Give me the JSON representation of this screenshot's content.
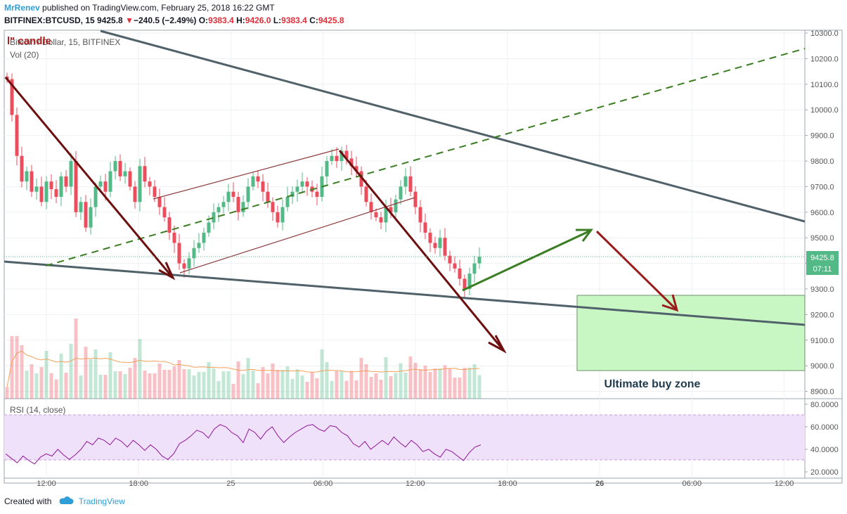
{
  "header": {
    "author": "MrRenev",
    "published_text": "published on TradingView.com, February 25, 2018 16:22 GMT",
    "symbol": "BITFINEX:BTCUSD, 15",
    "last": "9425.8",
    "change_arrow": "▼",
    "change": "−240.5 (−2.49%)",
    "o_label": "O:",
    "o": "9383.4",
    "h_label": "H:",
    "h": "9426.0",
    "l_label": "L:",
    "l": "9383.4",
    "c_label": "C:",
    "c": "9425.8"
  },
  "overlay_title": "l\" candle",
  "legend": {
    "series": "Bitcoin / Dollar, 15, BITFINEX",
    "volume": "Vol (20)",
    "rsi": "RSI (14, close)"
  },
  "price_badge": {
    "price": "9425.8",
    "countdown": "07:11"
  },
  "annotation": "Ultimate buy zone",
  "footer": {
    "created_with": "Created with",
    "brand": "TradingView"
  },
  "colors": {
    "up": "#53b987",
    "down": "#eb4d5c",
    "trend_line": "#506169",
    "arrow_dark": "#6e0f0f",
    "arrow_green": "#3a7d22",
    "channel": "#8d3b3b",
    "buy_zone": "#c9f7c4",
    "rsi_band": "#f0e1fb",
    "rsi_line": "#8e1599"
  },
  "chart_data": [
    {
      "type": "candlestick",
      "x_ticks": [
        "12:00",
        "18:00",
        "25",
        "06:00",
        "12:00",
        "18:00",
        "26",
        "06:00",
        "12:00"
      ],
      "y_ticks": [
        "10300.0",
        "10200.0",
        "10100.0",
        "10000.0",
        "9900.0",
        "9800.0",
        "9700.0",
        "9600.0",
        "9500.0",
        "9400.0",
        "9300.0",
        "9200.0",
        "9100.0",
        "9000.0",
        "8900.0"
      ],
      "ylim": [
        8880,
        10310
      ],
      "closes": [
        10120,
        9980,
        9820,
        9720,
        9760,
        9680,
        9700,
        9640,
        9720,
        9690,
        9660,
        9740,
        9700,
        9800,
        9600,
        9640,
        9540,
        9620,
        9700,
        9720,
        9680,
        9760,
        9800,
        9740,
        9760,
        9700,
        9640,
        9780,
        9720,
        9700,
        9660,
        9620,
        9580,
        9520,
        9480,
        9400,
        9380,
        9420,
        9460,
        9480,
        9520,
        9560,
        9600,
        9620,
        9640,
        9680,
        9660,
        9600,
        9640,
        9700,
        9740,
        9720,
        9680,
        9640,
        9600,
        9560,
        9620,
        9660,
        9680,
        9700,
        9720,
        9700,
        9680,
        9660,
        9740,
        9800,
        9820,
        9800,
        9840,
        9810,
        9780,
        9760,
        9700,
        9640,
        9600,
        9580,
        9560,
        9620,
        9600,
        9650,
        9700,
        9740,
        9680,
        9620,
        9560,
        9520,
        9480,
        9460,
        9500,
        9430,
        9400,
        9380,
        9340,
        9300,
        9360,
        9400,
        9425.8
      ],
      "volume_label": "Vol (20)"
    },
    {
      "type": "line",
      "name": "RSI (14, close)",
      "y_ticks": [
        "80.0000",
        "60.0000",
        "40.0000",
        "20.0000"
      ],
      "ylim": [
        16,
        82
      ],
      "band": [
        30,
        70
      ],
      "values": [
        36,
        32,
        28,
        34,
        30,
        27,
        33,
        36,
        34,
        40,
        35,
        31,
        35,
        40,
        47,
        44,
        50,
        48,
        44,
        50,
        47,
        42,
        48,
        44,
        39,
        44,
        40,
        34,
        31,
        36,
        45,
        48,
        52,
        57,
        55,
        50,
        58,
        62,
        60,
        55,
        52,
        46,
        58,
        55,
        49,
        56,
        60,
        52,
        46,
        51,
        55,
        58,
        61,
        62,
        58,
        56,
        61,
        60,
        55,
        52,
        45,
        42,
        47,
        40,
        44,
        48,
        44,
        51,
        46,
        42,
        48,
        44,
        38,
        40,
        36,
        33,
        40,
        38,
        34,
        30,
        37,
        42,
        44
      ]
    }
  ]
}
